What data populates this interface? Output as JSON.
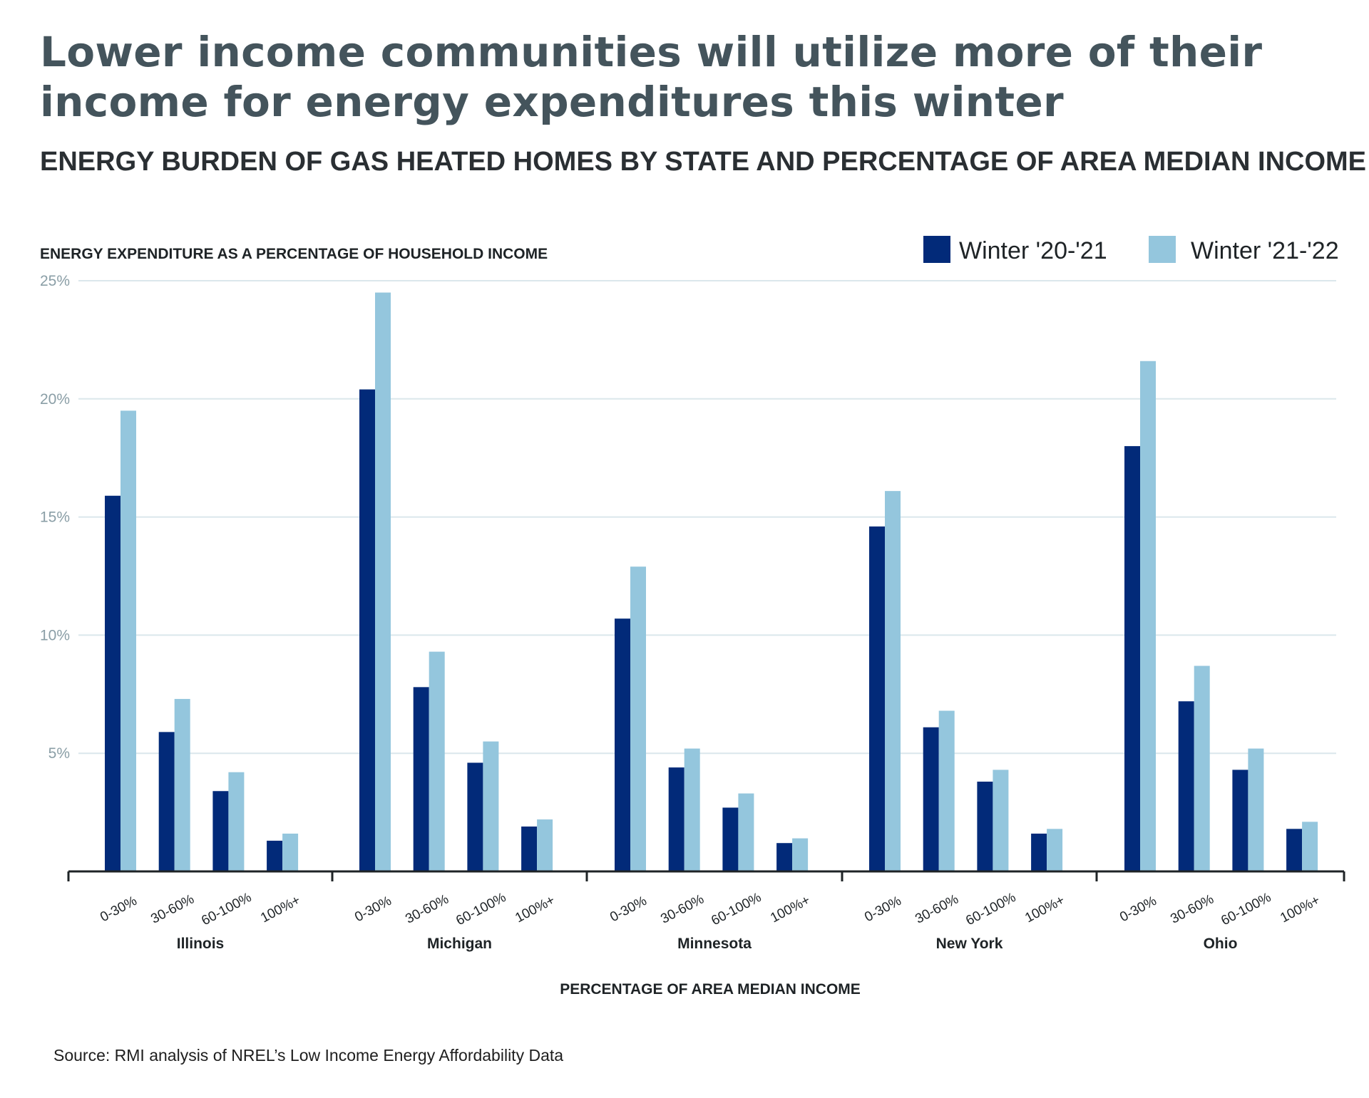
{
  "title": "Lower income communities will utilize more of their income for energy expenditures this winter",
  "subtitle": "ENERGY BURDEN OF GAS HEATED HOMES BY STATE AND PERCENTAGE OF AREA MEDIAN INCOME",
  "source": "Source: RMI analysis of NREL’s Low Income Energy Affordability Data",
  "chart_data": {
    "type": "bar",
    "ylabel": "ENERGY EXPENDITURE AS A PERCENTAGE OF HOUSEHOLD INCOME",
    "xlabel": "PERCENTAGE OF AREA MEDIAN INCOME",
    "ylim": [
      0,
      25
    ],
    "yticks": [
      5,
      10,
      15,
      20,
      25
    ],
    "ytick_labels": [
      "5%",
      "10%",
      "15%",
      "20%",
      "25%"
    ],
    "grid": true,
    "legend_position": "top-right",
    "groups": [
      "Illinois",
      "Michigan",
      "Minnesota",
      "New York",
      "Ohio"
    ],
    "categories": [
      "0-30%",
      "30-60%",
      "60-100%",
      "100%+"
    ],
    "series": [
      {
        "name": "Winter '20-'21",
        "color": "#022a79",
        "values": [
          [
            15.9,
            5.9,
            3.4,
            1.3
          ],
          [
            20.4,
            7.8,
            4.6,
            1.9
          ],
          [
            10.7,
            4.4,
            2.7,
            1.2
          ],
          [
            14.6,
            6.1,
            3.8,
            1.6
          ],
          [
            18.0,
            7.2,
            4.3,
            1.8
          ]
        ]
      },
      {
        "name": "Winter '21-'22",
        "color": "#94c6dd",
        "values": [
          [
            19.5,
            7.3,
            4.2,
            1.6
          ],
          [
            24.5,
            9.3,
            5.5,
            2.2
          ],
          [
            12.9,
            5.2,
            3.3,
            1.4
          ],
          [
            16.1,
            6.8,
            4.3,
            1.8
          ],
          [
            21.6,
            8.7,
            5.2,
            2.1
          ]
        ]
      }
    ]
  }
}
